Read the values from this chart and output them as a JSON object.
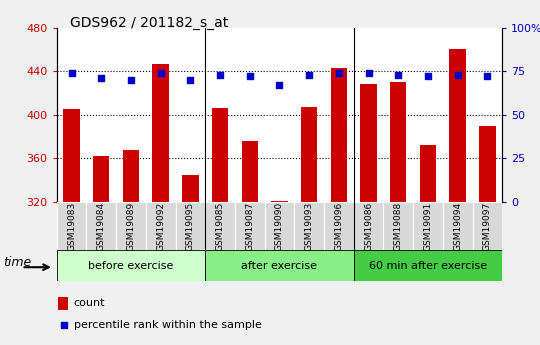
{
  "title": "GDS962 / 201182_s_at",
  "samples": [
    "GSM19083",
    "GSM19084",
    "GSM19089",
    "GSM19092",
    "GSM19095",
    "GSM19085",
    "GSM19087",
    "GSM19090",
    "GSM19093",
    "GSM19096",
    "GSM19086",
    "GSM19088",
    "GSM19091",
    "GSM19094",
    "GSM19097"
  ],
  "counts": [
    405,
    362,
    368,
    447,
    345,
    406,
    376,
    321,
    407,
    443,
    428,
    430,
    372,
    460,
    390
  ],
  "percentiles": [
    74,
    71,
    70,
    74,
    70,
    73,
    72,
    67,
    73,
    74,
    74,
    73,
    72,
    73,
    72
  ],
  "group_labels": [
    "before exercise",
    "after exercise",
    "60 min after exercise"
  ],
  "group_sizes": [
    5,
    5,
    5
  ],
  "group_colors": [
    "#ccffcc",
    "#88ee88",
    "#44cc44"
  ],
  "ylim_left": [
    320,
    480
  ],
  "ylim_right": [
    0,
    100
  ],
  "yticks_left": [
    320,
    360,
    400,
    440,
    480
  ],
  "yticks_right": [
    0,
    25,
    50,
    75,
    100
  ],
  "ytick_right_labels": [
    "0",
    "25",
    "50",
    "75",
    "100%"
  ],
  "hgrid_vals": [
    360,
    400,
    440
  ],
  "bar_color": "#cc0000",
  "dot_color": "#0000cc",
  "bar_width": 0.55,
  "fig_bg": "#f0f0f0",
  "plot_bg": "#ffffff",
  "left_tick_color": "#cc0000",
  "right_tick_color": "#0000cc",
  "legend_count_label": "count",
  "legend_pct_label": "percentile rank within the sample",
  "time_label": "time"
}
